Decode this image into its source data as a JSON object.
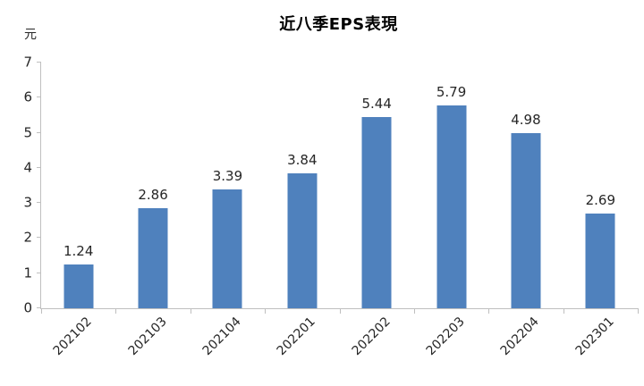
{
  "chart_data": {
    "type": "bar",
    "title": "近八季EPS表現",
    "ylabel": "元",
    "xlabel": "",
    "categories": [
      "202102",
      "202103",
      "202104",
      "202201",
      "202202",
      "202203",
      "202204",
      "202301"
    ],
    "values": [
      1.24,
      2.86,
      3.39,
      3.84,
      5.44,
      5.79,
      4.98,
      2.69
    ],
    "value_labels": [
      "1.24",
      "2.86",
      "3.39",
      "3.84",
      "5.44",
      "5.79",
      "4.98",
      "2.69"
    ],
    "ylim": [
      0,
      7
    ],
    "ytick_step": 1,
    "ytick_labels": [
      "0",
      "1",
      "2",
      "3",
      "4",
      "5",
      "6",
      "7"
    ],
    "grid": false,
    "legend": null,
    "bar_color": "#4f81bd",
    "axis_color": "#bfbfbf",
    "text_color": "#262626",
    "title_color": "#000000"
  }
}
